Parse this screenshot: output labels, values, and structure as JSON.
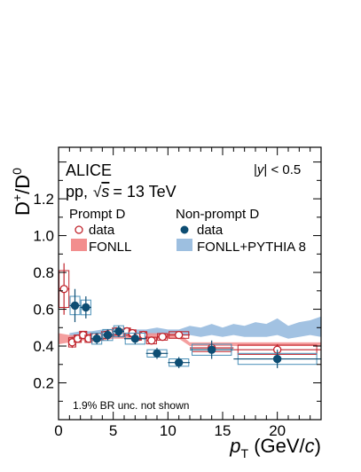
{
  "chart_data": {
    "type": "scatter",
    "title": "",
    "xlabel_main": "p",
    "xlabel_sub": "T",
    "xlabel_unit_pre": " (GeV/",
    "xlabel_unit_var": "c",
    "xlabel_unit_post": ")",
    "ylabel_a": "D",
    "ylabel_sup_a": "+",
    "ylabel_slash": "/D",
    "ylabel_sup_b": "0",
    "xlim": [
      0,
      24
    ],
    "ylim": [
      0,
      1.48
    ],
    "x_ticks": [
      0,
      5,
      10,
      15,
      20
    ],
    "y_ticks": [
      0.2,
      0.4,
      0.6,
      0.8,
      1.0,
      1.2
    ],
    "x_tick_labels": [
      "0",
      "5",
      "10",
      "15",
      "20"
    ],
    "y_tick_labels": [
      "0.2",
      "0.4",
      "0.6",
      "0.8",
      "1.0",
      "1.2"
    ],
    "annotations": {
      "experiment": "ALICE",
      "system_pre": "pp,",
      "system_post": "= 13 TeV",
      "sqrt_s_var": "s",
      "rapidity_pre": "|",
      "rapidity_var": "y",
      "rapidity_post": "| < 0.5",
      "br_note": "1.9% BR unc. not shown"
    },
    "legend": {
      "prompt_header": "Prompt D",
      "prompt_data": "data",
      "prompt_model": "FONLL",
      "nonprompt_header": "Non-prompt D",
      "nonprompt_data": "data",
      "nonprompt_model": "FONLL+PYTHIA 8"
    },
    "series": [
      {
        "name": "Prompt D data",
        "color": "#c0242c",
        "marker": "open-circle",
        "points": [
          {
            "x": 0.5,
            "y": 0.71,
            "xerr": 0.5,
            "stat": 0.14,
            "syst": 0.1
          },
          {
            "x": 1.25,
            "y": 0.42,
            "xerr": 0.25,
            "stat": 0.03,
            "syst": 0.025
          },
          {
            "x": 1.75,
            "y": 0.44,
            "xerr": 0.25,
            "stat": 0.02,
            "syst": 0.02
          },
          {
            "x": 2.25,
            "y": 0.46,
            "xerr": 0.25,
            "stat": 0.02,
            "syst": 0.02
          },
          {
            "x": 2.75,
            "y": 0.44,
            "xerr": 0.25,
            "stat": 0.02,
            "syst": 0.02
          },
          {
            "x": 3.25,
            "y": 0.45,
            "xerr": 0.25,
            "stat": 0.015,
            "syst": 0.018
          },
          {
            "x": 3.75,
            "y": 0.45,
            "xerr": 0.25,
            "stat": 0.015,
            "syst": 0.018
          },
          {
            "x": 4.25,
            "y": 0.46,
            "xerr": 0.25,
            "stat": 0.015,
            "syst": 0.018
          },
          {
            "x": 4.75,
            "y": 0.47,
            "xerr": 0.25,
            "stat": 0.015,
            "syst": 0.018
          },
          {
            "x": 5.25,
            "y": 0.48,
            "xerr": 0.25,
            "stat": 0.015,
            "syst": 0.018
          },
          {
            "x": 5.75,
            "y": 0.47,
            "xerr": 0.25,
            "stat": 0.015,
            "syst": 0.018
          },
          {
            "x": 6.25,
            "y": 0.48,
            "xerr": 0.25,
            "stat": 0.015,
            "syst": 0.018
          },
          {
            "x": 6.75,
            "y": 0.47,
            "xerr": 0.25,
            "stat": 0.015,
            "syst": 0.018
          },
          {
            "x": 7.25,
            "y": 0.45,
            "xerr": 0.25,
            "stat": 0.015,
            "syst": 0.018
          },
          {
            "x": 7.75,
            "y": 0.46,
            "xerr": 0.25,
            "stat": 0.015,
            "syst": 0.018
          },
          {
            "x": 8.5,
            "y": 0.43,
            "xerr": 0.5,
            "stat": 0.015,
            "syst": 0.018
          },
          {
            "x": 9.5,
            "y": 0.45,
            "xerr": 0.5,
            "stat": 0.015,
            "syst": 0.018
          },
          {
            "x": 11.0,
            "y": 0.46,
            "xerr": 1.0,
            "stat": 0.015,
            "syst": 0.018
          },
          {
            "x": 14.0,
            "y": 0.39,
            "xerr": 2.0,
            "stat": 0.025,
            "syst": 0.02
          },
          {
            "x": 20.0,
            "y": 0.38,
            "xerr": 4.0,
            "stat": 0.03,
            "syst": 0.025
          }
        ]
      },
      {
        "name": "Non-prompt D data",
        "color": "#0d4d73",
        "box_color": "#4a90b8",
        "marker": "filled-circle",
        "points": [
          {
            "x": 1.5,
            "y": 0.62,
            "xerr": 0.5,
            "stat": 0.09,
            "syst": 0.05
          },
          {
            "x": 2.5,
            "y": 0.61,
            "xerr": 0.5,
            "stat": 0.06,
            "syst": 0.04
          },
          {
            "x": 3.5,
            "y": 0.44,
            "xerr": 0.5,
            "stat": 0.03,
            "syst": 0.03
          },
          {
            "x": 4.5,
            "y": 0.46,
            "xerr": 0.5,
            "stat": 0.03,
            "syst": 0.03
          },
          {
            "x": 5.5,
            "y": 0.48,
            "xerr": 0.5,
            "stat": 0.03,
            "syst": 0.03
          },
          {
            "x": 7.0,
            "y": 0.44,
            "xerr": 1.0,
            "stat": 0.03,
            "syst": 0.03
          },
          {
            "x": 9.0,
            "y": 0.36,
            "xerr": 1.0,
            "stat": 0.03,
            "syst": 0.02
          },
          {
            "x": 11.0,
            "y": 0.31,
            "xerr": 1.0,
            "stat": 0.03,
            "syst": 0.02
          },
          {
            "x": 14.0,
            "y": 0.38,
            "xerr": 2.0,
            "stat": 0.05,
            "syst": 0.03
          },
          {
            "x": 20.0,
            "y": 0.33,
            "xerr": 4.0,
            "stat": 0.05,
            "syst": 0.03
          }
        ]
      }
    ],
    "bands": [
      {
        "name": "FONLL",
        "color": "#f28e8e",
        "x": [
          0,
          1,
          2,
          3,
          4,
          5,
          6,
          7,
          8,
          9,
          10,
          11,
          12,
          14,
          16,
          18,
          20,
          22,
          24
        ],
        "upper": [
          0.47,
          0.46,
          0.46,
          0.47,
          0.47,
          0.47,
          0.47,
          0.47,
          0.47,
          0.47,
          0.47,
          0.47,
          0.42,
          0.42,
          0.42,
          0.42,
          0.42,
          0.42,
          0.42
        ],
        "lower": [
          0.41,
          0.42,
          0.43,
          0.43,
          0.43,
          0.44,
          0.44,
          0.44,
          0.44,
          0.44,
          0.44,
          0.44,
          0.4,
          0.4,
          0.4,
          0.4,
          0.4,
          0.4,
          0.4
        ]
      },
      {
        "name": "FONLL+PYTHIA 8",
        "color": "#9dbfe0",
        "x": [
          1,
          2,
          3,
          4,
          5,
          6,
          7,
          8,
          9,
          10,
          11,
          12,
          13,
          14,
          15,
          16,
          17,
          18,
          19,
          20,
          21,
          22,
          23,
          24
        ],
        "upper": [
          0.47,
          0.48,
          0.48,
          0.49,
          0.49,
          0.49,
          0.49,
          0.49,
          0.5,
          0.49,
          0.49,
          0.51,
          0.5,
          0.52,
          0.5,
          0.52,
          0.51,
          0.53,
          0.52,
          0.55,
          0.51,
          0.53,
          0.54,
          0.56
        ],
        "lower": [
          0.43,
          0.44,
          0.44,
          0.45,
          0.45,
          0.45,
          0.45,
          0.46,
          0.46,
          0.46,
          0.46,
          0.46,
          0.45,
          0.46,
          0.45,
          0.46,
          0.45,
          0.45,
          0.45,
          0.46,
          0.44,
          0.45,
          0.46,
          0.45
        ]
      }
    ]
  }
}
